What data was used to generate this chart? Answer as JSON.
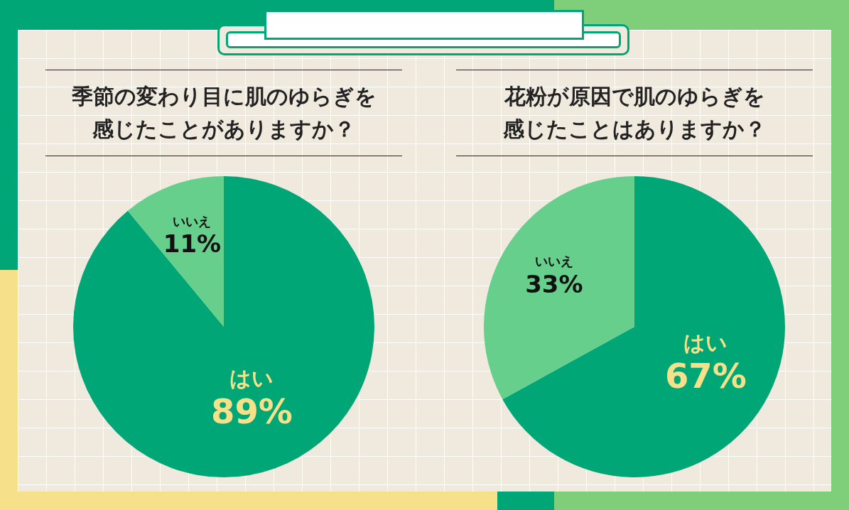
{
  "chart_data": [
    {
      "type": "pie",
      "title": "季節の変わり目に肌のゆらぎを感じたことがありますか？",
      "categories": [
        "はい",
        "いいえ"
      ],
      "values": [
        89,
        11
      ],
      "colors": [
        "#00a676",
        "#66cf8c"
      ],
      "value_labels": [
        "89%",
        "11%"
      ],
      "legend": false
    },
    {
      "type": "pie",
      "title": "花粉が原因で肌のゆらぎを感じたことはありますか？",
      "categories": [
        "はい",
        "いいえ"
      ],
      "values": [
        67,
        33
      ],
      "colors": [
        "#00a676",
        "#66cf8c"
      ],
      "value_labels": [
        "67%",
        "33%"
      ],
      "legend": false
    }
  ]
}
